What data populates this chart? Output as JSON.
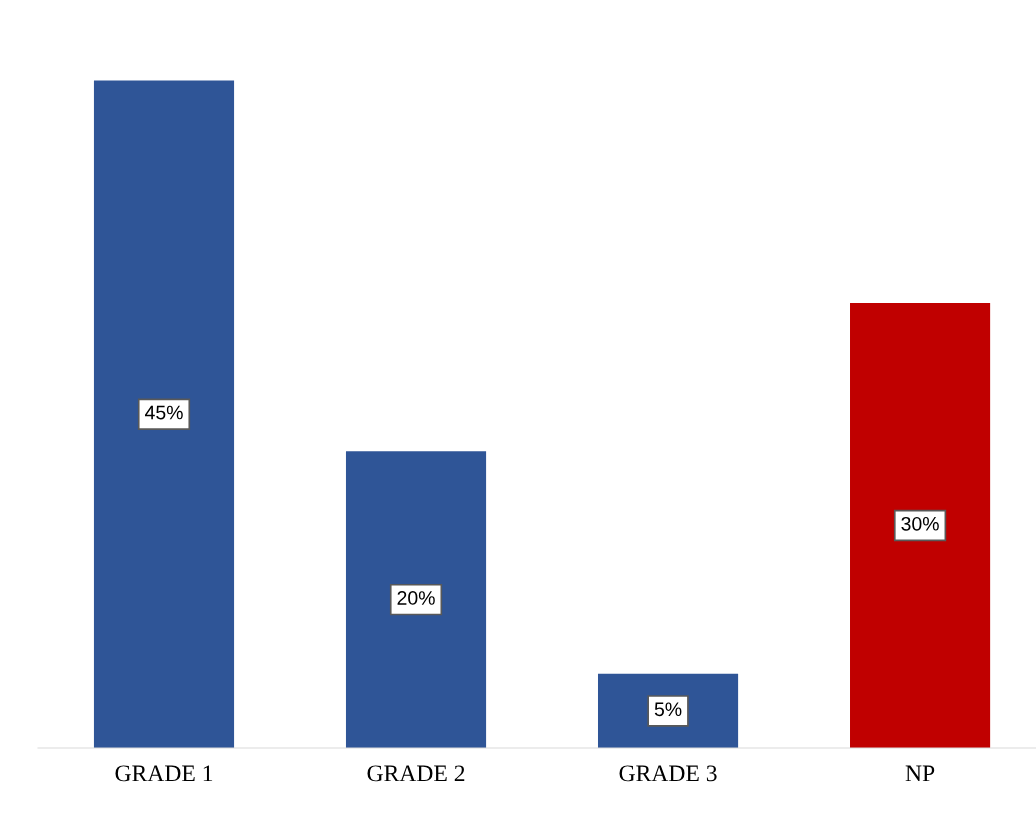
{
  "chart_data": {
    "type": "bar",
    "categories": [
      "GRADE 1",
      "GRADE 2",
      "GRADE 3",
      "NP"
    ],
    "values": [
      45,
      20,
      5,
      30
    ],
    "colors": [
      "#2f5597",
      "#2f5597",
      "#2f5597",
      "#c00000"
    ],
    "value_labels": [
      "45%",
      "20%",
      "5%",
      "30%"
    ],
    "grid": false,
    "legend": false
  }
}
